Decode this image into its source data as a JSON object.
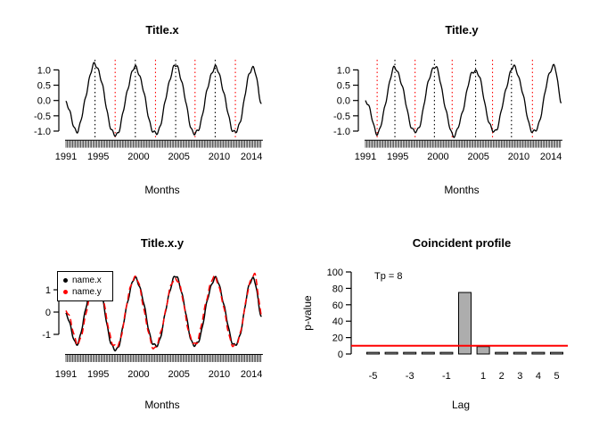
{
  "figure": {
    "background": "#FFFFFF",
    "text_color": "#000000",
    "accent_red": "#FF0000",
    "line_black": "#000000",
    "bar_fill": "#ADADAD",
    "bar_edge": "#000000"
  },
  "chart_data": [
    {
      "id": "title-x",
      "type": "line",
      "title": "Title.x",
      "xlabel": "Months",
      "ylabel": "",
      "x_range": [
        1991,
        2015.3
      ],
      "y_range": [
        -1.3,
        1.3
      ],
      "xtick_values": [
        1991,
        1995,
        2000,
        2005,
        2010,
        2014
      ],
      "xtick_labels": [
        "1991",
        "1995",
        "2000",
        "2005",
        "2010",
        "2014"
      ],
      "ytick_values": [
        1.0,
        0.5,
        0.0,
        -0.5,
        -1.0
      ],
      "ytick_labels": [
        "1.0",
        "0.5",
        "0.0",
        "-0.5",
        "-1.0"
      ],
      "rug": {
        "start": 1991,
        "end": 2015.3,
        "step_years": 0.1667
      },
      "series": [
        {
          "name": "x",
          "color": "#000000",
          "line": "solid",
          "turning_points": [
            [
              1991.0,
              -0.05
            ],
            [
              1992.25,
              -1.0
            ],
            [
              1994.6,
              1.17
            ],
            [
              1997.1,
              -1.15
            ],
            [
              1999.6,
              1.07
            ],
            [
              2002.1,
              -1.1
            ],
            [
              2004.6,
              1.13
            ],
            [
              2007.0,
              -1.1
            ],
            [
              2009.5,
              1.07
            ],
            [
              2012.0,
              -1.05
            ],
            [
              2014.2,
              1.1
            ],
            [
              2015.3,
              -0.1
            ]
          ],
          "texture": [
            [
              0.055,
              0.58,
              0.3
            ],
            [
              0.04,
              1.27,
              2.0
            ]
          ]
        }
      ],
      "peak_vlines": {
        "color": "#000000",
        "style": "dotted",
        "x": [
          1994.6,
          1999.6,
          2004.6,
          2009.5
        ]
      },
      "trough_vlines": {
        "color": "#FF0000",
        "style": "dotted",
        "x": [
          1997.1,
          2002.1,
          2007.0,
          2012.0
        ]
      }
    },
    {
      "id": "title-y",
      "type": "line",
      "title": "Title.y",
      "xlabel": "Months",
      "ylabel": "",
      "x_range": [
        1991,
        2015.3
      ],
      "y_range": [
        -1.3,
        1.3
      ],
      "xtick_values": [
        1991,
        1995,
        2000,
        2005,
        2010,
        2014
      ],
      "xtick_labels": [
        "1991",
        "1995",
        "2000",
        "2005",
        "2010",
        "2014"
      ],
      "ytick_values": [
        1.0,
        0.5,
        0.0,
        -0.5,
        -1.0
      ],
      "ytick_labels": [
        "1.0",
        "0.5",
        "0.0",
        "-0.5",
        "-1.0"
      ],
      "rug": {
        "start": 1991,
        "end": 2015.3,
        "step_years": 0.1667
      },
      "series": [
        {
          "name": "y",
          "color": "#000000",
          "line": "solid",
          "turning_points": [
            [
              1991.0,
              0.02
            ],
            [
              1992.45,
              -1.05
            ],
            [
              1994.65,
              1.05
            ],
            [
              1997.2,
              -1.05
            ],
            [
              1999.55,
              1.1
            ],
            [
              2001.95,
              -1.12
            ],
            [
              2004.6,
              1.0
            ],
            [
              2006.9,
              -1.02
            ],
            [
              2009.4,
              1.08
            ],
            [
              2011.9,
              -1.05
            ],
            [
              2014.35,
              1.15
            ],
            [
              2015.3,
              -0.02
            ]
          ],
          "texture": [
            [
              0.05,
              0.6,
              1.1
            ],
            [
              0.045,
              1.35,
              2.6
            ]
          ]
        }
      ],
      "peak_vlines": {
        "color": "#000000",
        "style": "dotted",
        "x": [
          1994.65,
          1999.55,
          2004.65,
          2009.1
        ]
      },
      "trough_vlines": {
        "color": "#FF0000",
        "style": "dotted",
        "x": [
          1992.45,
          1997.15,
          2001.75,
          2006.75,
          2011.7
        ]
      }
    },
    {
      "id": "title-x-y",
      "type": "line",
      "title": "Title.x.y",
      "xlabel": "Months",
      "ylabel": "",
      "x_range": [
        1991,
        2015.3
      ],
      "y_range": [
        -1.9,
        1.9
      ],
      "xtick_values": [
        1991,
        1995,
        2000,
        2005,
        2010,
        2014
      ],
      "xtick_labels": [
        "1991",
        "1995",
        "2000",
        "2005",
        "2010",
        "2014"
      ],
      "ytick_values": [
        1,
        0,
        -1
      ],
      "ytick_labels": [
        "1",
        "0",
        "-1"
      ],
      "rug": {
        "start": 1991,
        "end": 2015.3,
        "step_years": 0.1667
      },
      "legend": {
        "position": "topleft",
        "items": [
          "name.x",
          "name.y"
        ]
      },
      "series": [
        {
          "name": "name.x",
          "color": "#000000",
          "line": "solid",
          "turning_points": [
            [
              1991.0,
              -0.07
            ],
            [
              1992.25,
              -1.42
            ],
            [
              1994.6,
              1.6
            ],
            [
              1997.1,
              -1.72
            ],
            [
              1999.6,
              1.5
            ],
            [
              2002.1,
              -1.55
            ],
            [
              2004.6,
              1.58
            ],
            [
              2007.0,
              -1.52
            ],
            [
              2009.5,
              1.5
            ],
            [
              2012.0,
              -1.5
            ],
            [
              2014.2,
              1.55
            ],
            [
              2015.3,
              -0.2
            ]
          ],
          "texture": [
            [
              0.06,
              0.58,
              0.3
            ],
            [
              0.05,
              1.27,
              2.0
            ]
          ]
        },
        {
          "name": "name.y",
          "color": "#FF0000",
          "line": "dashed",
          "turning_points": [
            [
              1991.0,
              0.1
            ],
            [
              1992.45,
              -1.38
            ],
            [
              1994.65,
              1.5
            ],
            [
              1997.2,
              -1.6
            ],
            [
              1999.55,
              1.55
            ],
            [
              2001.95,
              -1.6
            ],
            [
              2004.6,
              1.52
            ],
            [
              2006.9,
              -1.45
            ],
            [
              2009.4,
              1.55
            ],
            [
              2011.9,
              -1.55
            ],
            [
              2014.35,
              1.7
            ],
            [
              2015.3,
              -0.15
            ]
          ],
          "texture": [
            [
              0.06,
              0.62,
              1.4
            ],
            [
              0.05,
              1.35,
              2.6
            ]
          ]
        }
      ]
    },
    {
      "id": "coincident-profile",
      "type": "bar",
      "title": "Coincident profile",
      "xlabel": "Lag",
      "ylabel": "p-value",
      "annotation": "Tp = 8",
      "categories": [
        -5,
        -4,
        -3,
        -2,
        -1,
        0,
        1,
        2,
        3,
        4,
        5
      ],
      "values": [
        2,
        2,
        2,
        2,
        2,
        75,
        9,
        2,
        2,
        2,
        2
      ],
      "ylim": [
        0,
        100
      ],
      "ytick_values": [
        0,
        20,
        40,
        60,
        80,
        100
      ],
      "ytick_labels": [
        "0",
        "20",
        "40",
        "60",
        "80",
        "100"
      ],
      "xtick_lags": [
        -5,
        -3,
        -1,
        1,
        2,
        3,
        4,
        5
      ],
      "xtick_labels": [
        "-5",
        "-3",
        "-1",
        "1",
        "2",
        "3",
        "4",
        "5"
      ],
      "significance_line": {
        "value": 10,
        "color": "#FF0000"
      },
      "bar_fill": "#ADADAD",
      "bar_edge": "#000000"
    }
  ]
}
